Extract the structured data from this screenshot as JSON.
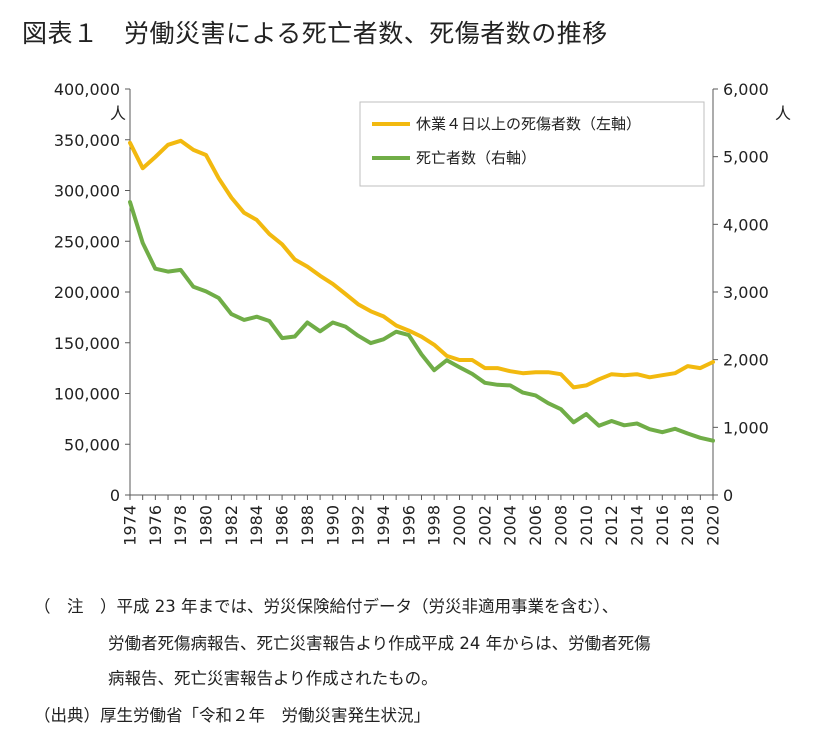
{
  "title": "図表１　労働災害による死亡者数、死傷者数の推移",
  "notes": {
    "line1": "（　注　）平成 23 年までは、労災保険給付データ（労災非適用事業を含む）、",
    "line2": "労働者死傷病報告、死亡災害報告より作成平成 24 年からは、労働者死傷",
    "line3": "病報告、死亡災害報告より作成されたもの。",
    "source": "（出典）厚生労働省「令和２年　労働災害発生状況」"
  },
  "chart_data": {
    "type": "line",
    "title": "",
    "xlabel": "",
    "ylabel_left": "人",
    "ylabel_right": "人",
    "ylim_left": [
      0,
      400000
    ],
    "ylim_right": [
      0,
      6000
    ],
    "yticks_left": [
      "0",
      "50,000",
      "100,000",
      "150,000",
      "200,000",
      "250,000",
      "300,000",
      "350,000",
      "400,000"
    ],
    "yticks_right": [
      "0",
      "1,000",
      "2,000",
      "3,000",
      "4,000",
      "5,000",
      "6,000"
    ],
    "xtick_labels": [
      "1974",
      "1976",
      "1978",
      "1980",
      "1982",
      "1984",
      "1986",
      "1988",
      "1990",
      "1992",
      "1994",
      "1996",
      "1998",
      "2000",
      "2002",
      "2004",
      "2006",
      "2008",
      "2010",
      "2012",
      "2014",
      "2016",
      "2018",
      "2020"
    ],
    "x": [
      1974,
      1975,
      1976,
      1977,
      1978,
      1979,
      1980,
      1981,
      1982,
      1983,
      1984,
      1985,
      1986,
      1987,
      1988,
      1989,
      1990,
      1991,
      1992,
      1993,
      1994,
      1995,
      1996,
      1997,
      1998,
      1999,
      2000,
      2001,
      2002,
      2003,
      2004,
      2005,
      2006,
      2007,
      2008,
      2009,
      2010,
      2011,
      2012,
      2013,
      2014,
      2015,
      2016,
      2017,
      2018,
      2019,
      2020
    ],
    "grid": false,
    "legend_position": "top-right",
    "series": [
      {
        "name": "休業４日以上の死傷者数（左軸）",
        "axis": "left",
        "color": "#F2B90F",
        "values": [
          347000,
          322000,
          333000,
          345000,
          349000,
          340000,
          335000,
          312000,
          293000,
          278000,
          271000,
          257000,
          247000,
          232000,
          225000,
          216000,
          208000,
          198000,
          188000,
          181000,
          176000,
          167000,
          162000,
          156000,
          148000,
          137000,
          133000,
          133000,
          125000,
          125000,
          122000,
          120000,
          121000,
          121000,
          119000,
          106000,
          108000,
          114000,
          119000,
          118000,
          119000,
          116000,
          118000,
          120000,
          127000,
          125000,
          131000
        ]
      },
      {
        "name": "死亡者数（右軸）",
        "axis": "right",
        "color": "#70AD47",
        "values": [
          4330,
          3725,
          3345,
          3302,
          3326,
          3077,
          3009,
          2912,
          2674,
          2588,
          2635,
          2572,
          2318,
          2342,
          2549,
          2419,
          2550,
          2489,
          2354,
          2245,
          2301,
          2414,
          2363,
          2078,
          1844,
          1992,
          1889,
          1790,
          1658,
          1628,
          1620,
          1514,
          1472,
          1357,
          1268,
          1075,
          1195,
          1024,
          1093,
          1030,
          1057,
          972,
          928,
          978,
          909,
          845,
          802
        ]
      }
    ]
  }
}
